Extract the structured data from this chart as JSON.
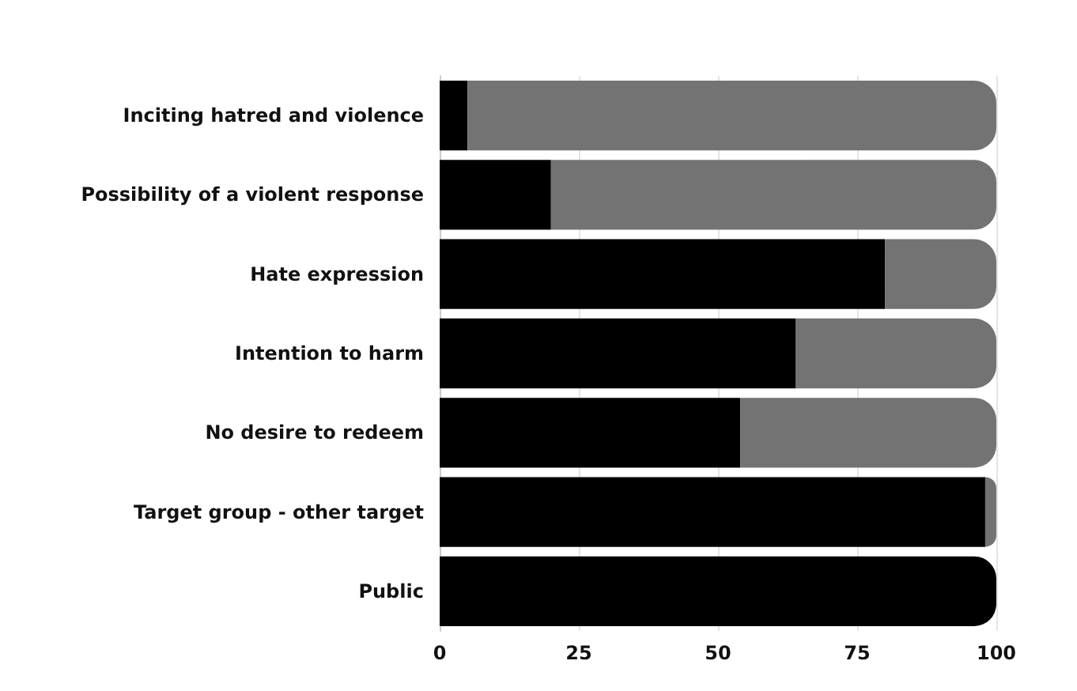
{
  "chart_data": {
    "type": "bar",
    "orientation": "horizontal",
    "stacked": true,
    "categories": [
      "Inciting hatred and violence",
      "Possibility of a violent response",
      "Hate expression",
      "Intention to harm",
      "No desire to redeem",
      "Target group - other target",
      "Public"
    ],
    "series": [
      {
        "color": "#000000",
        "values": [
          5,
          20,
          80,
          64,
          54,
          98,
          100
        ]
      },
      {
        "color": "#737373",
        "values": [
          95,
          80,
          20,
          36,
          46,
          2,
          0
        ]
      }
    ],
    "xlim": [
      0,
      100
    ],
    "xticks": [
      0,
      25,
      50,
      75,
      100
    ],
    "grid": "x"
  }
}
